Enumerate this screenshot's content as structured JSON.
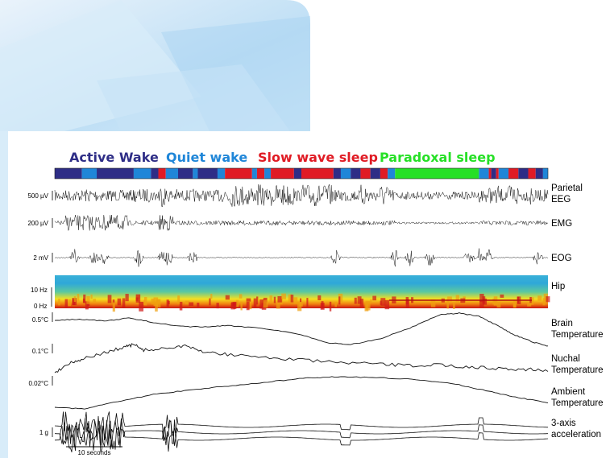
{
  "chart_data": {
    "type": "line",
    "title": "",
    "stages": [
      {
        "name": "Active Wake",
        "color": "#2e2d86"
      },
      {
        "name": "Quiet wake",
        "color": "#1f86d8"
      },
      {
        "name": "Slow wave sleep",
        "color": "#e01b24"
      },
      {
        "name": "Paradoxal sleep",
        "color": "#26e026"
      }
    ],
    "hypnogram": [
      {
        "stage": 0,
        "from": 0.0,
        "to": 0.055
      },
      {
        "stage": 1,
        "from": 0.055,
        "to": 0.085
      },
      {
        "stage": 0,
        "from": 0.085,
        "to": 0.16
      },
      {
        "stage": 1,
        "from": 0.16,
        "to": 0.195
      },
      {
        "stage": 0,
        "from": 0.195,
        "to": 0.21
      },
      {
        "stage": 2,
        "from": 0.21,
        "to": 0.225
      },
      {
        "stage": 1,
        "from": 0.225,
        "to": 0.25
      },
      {
        "stage": 0,
        "from": 0.25,
        "to": 0.28
      },
      {
        "stage": 1,
        "from": 0.28,
        "to": 0.29
      },
      {
        "stage": 0,
        "from": 0.29,
        "to": 0.33
      },
      {
        "stage": 1,
        "from": 0.33,
        "to": 0.345
      },
      {
        "stage": 2,
        "from": 0.345,
        "to": 0.4
      },
      {
        "stage": 1,
        "from": 0.4,
        "to": 0.41
      },
      {
        "stage": 2,
        "from": 0.41,
        "to": 0.425
      },
      {
        "stage": 1,
        "from": 0.425,
        "to": 0.438
      },
      {
        "stage": 2,
        "from": 0.438,
        "to": 0.485
      },
      {
        "stage": 0,
        "from": 0.485,
        "to": 0.5
      },
      {
        "stage": 2,
        "from": 0.5,
        "to": 0.565
      },
      {
        "stage": 0,
        "from": 0.565,
        "to": 0.58
      },
      {
        "stage": 1,
        "from": 0.58,
        "to": 0.6
      },
      {
        "stage": 0,
        "from": 0.6,
        "to": 0.62
      },
      {
        "stage": 2,
        "from": 0.62,
        "to": 0.64
      },
      {
        "stage": 0,
        "from": 0.64,
        "to": 0.66
      },
      {
        "stage": 2,
        "from": 0.66,
        "to": 0.675
      },
      {
        "stage": 1,
        "from": 0.675,
        "to": 0.69
      },
      {
        "stage": 3,
        "from": 0.69,
        "to": 0.86
      },
      {
        "stage": 1,
        "from": 0.86,
        "to": 0.88
      },
      {
        "stage": 2,
        "from": 0.88,
        "to": 0.885
      },
      {
        "stage": 0,
        "from": 0.885,
        "to": 0.895
      },
      {
        "stage": 2,
        "from": 0.895,
        "to": 0.9
      },
      {
        "stage": 1,
        "from": 0.9,
        "to": 0.92
      },
      {
        "stage": 2,
        "from": 0.92,
        "to": 0.94
      },
      {
        "stage": 0,
        "from": 0.94,
        "to": 0.96
      },
      {
        "stage": 2,
        "from": 0.96,
        "to": 0.975
      },
      {
        "stage": 0,
        "from": 0.975,
        "to": 0.99
      },
      {
        "stage": 1,
        "from": 0.99,
        "to": 1.0
      }
    ],
    "channels": [
      {
        "name": "Parietal\nEEG",
        "scale": "500 µV",
        "kind": "eeg"
      },
      {
        "name": "EMG",
        "scale": "200 µV",
        "kind": "emg"
      },
      {
        "name": "EOG",
        "scale": "2 mV",
        "kind": "eog"
      },
      {
        "name": "Hip",
        "scale_top": "10 Hz",
        "scale_bottom": "0 Hz",
        "kind": "spectrogram"
      },
      {
        "name": "Brain\nTemperature",
        "scale": "0.5°C",
        "kind": "temp",
        "trace": [
          [
            0,
            0.78
          ],
          [
            0.05,
            0.82
          ],
          [
            0.1,
            0.76
          ],
          [
            0.15,
            0.85
          ],
          [
            0.2,
            0.72
          ],
          [
            0.25,
            0.6
          ],
          [
            0.3,
            0.58
          ],
          [
            0.35,
            0.62
          ],
          [
            0.42,
            0.55
          ],
          [
            0.5,
            0.35
          ],
          [
            0.55,
            0.1
          ],
          [
            0.6,
            0.05
          ],
          [
            0.66,
            0.22
          ],
          [
            0.72,
            0.55
          ],
          [
            0.78,
            0.95
          ],
          [
            0.82,
            1.0
          ],
          [
            0.86,
            0.9
          ],
          [
            0.9,
            0.6
          ],
          [
            0.93,
            0.35
          ],
          [
            0.97,
            0.12
          ],
          [
            1.0,
            0.0
          ]
        ]
      },
      {
        "name": "Nuchal\nTemperature",
        "scale": "0.1°C",
        "kind": "temp",
        "trace": [
          [
            0,
            0.0
          ],
          [
            0.03,
            0.35
          ],
          [
            0.06,
            0.5
          ],
          [
            0.1,
            0.7
          ],
          [
            0.14,
            0.9
          ],
          [
            0.16,
            1.0
          ],
          [
            0.18,
            0.8
          ],
          [
            0.22,
            0.85
          ],
          [
            0.26,
            0.95
          ],
          [
            0.3,
            0.75
          ],
          [
            0.35,
            0.65
          ],
          [
            0.42,
            0.55
          ],
          [
            0.5,
            0.45
          ],
          [
            0.58,
            0.35
          ],
          [
            0.66,
            0.3
          ],
          [
            0.72,
            0.25
          ],
          [
            0.78,
            0.28
          ],
          [
            0.84,
            0.2
          ],
          [
            0.9,
            0.15
          ],
          [
            0.95,
            0.12
          ],
          [
            1.0,
            0.1
          ]
        ]
      },
      {
        "name": "Ambient\nTemperature",
        "scale": "0.02°C",
        "kind": "temp",
        "trace": [
          [
            0,
            0.05
          ],
          [
            0.06,
            0.0
          ],
          [
            0.12,
            0.2
          ],
          [
            0.2,
            0.45
          ],
          [
            0.28,
            0.6
          ],
          [
            0.36,
            0.72
          ],
          [
            0.44,
            0.85
          ],
          [
            0.52,
            0.97
          ],
          [
            0.58,
            1.0
          ],
          [
            0.66,
            0.97
          ],
          [
            0.74,
            0.9
          ],
          [
            0.82,
            0.75
          ],
          [
            0.88,
            0.55
          ],
          [
            0.94,
            0.35
          ],
          [
            1.0,
            0.2
          ]
        ]
      },
      {
        "name": "3-axis\nacceleration",
        "scale": "1 g",
        "kind": "accel"
      }
    ],
    "time_scale": "10 seconds"
  }
}
